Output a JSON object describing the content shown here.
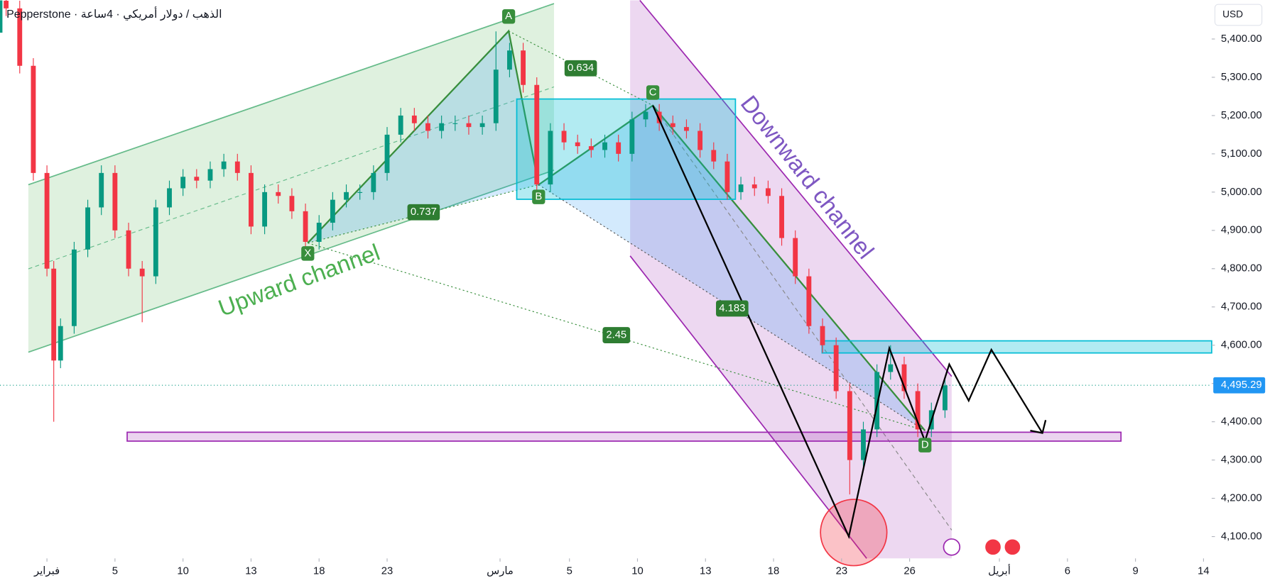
{
  "chart_data": {
    "type": "candlestick",
    "title": "Pepperstone · الذهب / دولار أمريكي · 4ساعة",
    "currency": "USD",
    "x": [
      -3,
      -2,
      -1,
      0,
      0.5,
      1,
      2,
      3,
      4,
      5,
      6,
      7,
      8,
      9,
      10,
      11,
      12,
      13,
      14,
      15,
      16,
      17,
      18,
      19,
      20,
      21,
      22,
      23,
      24,
      25,
      26,
      27,
      28,
      29,
      30,
      31,
      32,
      33,
      34,
      35,
      36,
      37,
      38,
      39,
      40,
      41,
      42,
      43,
      44,
      45,
      46,
      47,
      48,
      49,
      50,
      51,
      52,
      53,
      54,
      55,
      56,
      57,
      58,
      59,
      60,
      61,
      62,
      63,
      64,
      65,
      66
    ],
    "open": [
      5500,
      5480,
      5330,
      5050,
      4800,
      4560,
      4650,
      4850,
      4960,
      5050,
      4900,
      4800,
      4780,
      4960,
      5010,
      5040,
      5030,
      5060,
      5080,
      5050,
      4910,
      5000,
      4990,
      4950,
      4870,
      4920,
      4980,
      5000,
      5000,
      5050,
      5150,
      5200,
      5180,
      5160,
      5180,
      5180,
      5170,
      5180,
      5320,
      5370,
      5280,
      5020,
      5160,
      5130,
      5120,
      5110,
      5130,
      5100,
      5190,
      5210,
      5180,
      5170,
      5160,
      5110,
      5080,
      5000,
      5020,
      5010,
      4990,
      4880,
      4780,
      4650,
      4600,
      4480,
      4300,
      4380,
      4530,
      4550,
      4480,
      4380,
      4430
    ],
    "high": [
      5520,
      5500,
      5350,
      5070,
      4820,
      4670,
      4870,
      4980,
      5070,
      5070,
      4920,
      4820,
      4980,
      5030,
      5060,
      5060,
      5080,
      5100,
      5100,
      5070,
      5020,
      5020,
      5010,
      4970,
      4940,
      5000,
      5020,
      5020,
      5070,
      5170,
      5220,
      5220,
      5200,
      5200,
      5200,
      5200,
      5200,
      5420,
      5390,
      5390,
      5300,
      5180,
      5180,
      5150,
      5140,
      5150,
      5150,
      5210,
      5230,
      5230,
      5200,
      5190,
      5180,
      5130,
      5100,
      5040,
      5040,
      5030,
      5010,
      4900,
      4800,
      4670,
      4620,
      4500,
      4400,
      4550,
      4600,
      4570,
      4500,
      4450,
      4515
    ],
    "low": [
      5460,
      5310,
      5030,
      4780,
      4400,
      4540,
      4630,
      4830,
      4940,
      4880,
      4780,
      4660,
      4760,
      4940,
      4990,
      5010,
      5010,
      5040,
      5030,
      4890,
      4890,
      4970,
      4930,
      4850,
      4850,
      4900,
      4960,
      4980,
      4980,
      5030,
      5130,
      5160,
      5140,
      5140,
      5160,
      5150,
      5150,
      5160,
      5300,
      5260,
      5000,
      5000,
      5110,
      5100,
      5090,
      5090,
      5080,
      5080,
      5170,
      5160,
      5150,
      5140,
      5090,
      5060,
      4980,
      4980,
      4990,
      4970,
      4860,
      4760,
      4630,
      4580,
      4460,
      4210,
      4280,
      4360,
      4510,
      4460,
      4360,
      4360,
      4410
    ],
    "close": [
      5480,
      5330,
      5050,
      4800,
      4560,
      4650,
      4850,
      4960,
      5050,
      4900,
      4800,
      4780,
      4960,
      5010,
      5040,
      5030,
      5060,
      5080,
      5050,
      4910,
      5000,
      4990,
      4950,
      4870,
      4920,
      4980,
      5000,
      5000,
      5050,
      5150,
      5200,
      5180,
      5160,
      5180,
      5180,
      5170,
      5180,
      5320,
      5370,
      5280,
      5020,
      5160,
      5130,
      5120,
      5110,
      5130,
      5100,
      5190,
      5210,
      5180,
      5170,
      5160,
      5110,
      5080,
      5000,
      5020,
      5010,
      4990,
      4880,
      4780,
      4650,
      4600,
      4480,
      4300,
      4380,
      4530,
      4550,
      4480,
      4380,
      4430,
      4495
    ],
    "up_color": "#089981",
    "down_color": "#f23645",
    "xlim": [
      -3.45,
      85.6
    ],
    "ylim": [
      4043,
      5501
    ],
    "xticks": [
      {
        "value": 0,
        "label": "فبراير"
      },
      {
        "value": 5,
        "label": "5"
      },
      {
        "value": 10,
        "label": "10"
      },
      {
        "value": 15,
        "label": "13"
      },
      {
        "value": 20,
        "label": "18"
      },
      {
        "value": 25,
        "label": "23"
      },
      {
        "value": 33.3,
        "label": "مارس"
      },
      {
        "value": 38.4,
        "label": "5"
      },
      {
        "value": 43.4,
        "label": "10"
      },
      {
        "value": 48.4,
        "label": "13"
      },
      {
        "value": 53.4,
        "label": "18"
      },
      {
        "value": 58.4,
        "label": "23"
      },
      {
        "value": 63.4,
        "label": "26"
      },
      {
        "value": 70,
        "label": "أبريل"
      },
      {
        "value": 75,
        "label": "6"
      },
      {
        "value": 80,
        "label": "9"
      },
      {
        "value": 85,
        "label": "14"
      }
    ],
    "yticks": [
      {
        "value": 4100,
        "label": "4,100.00"
      },
      {
        "value": 4200,
        "label": "4,200.00"
      },
      {
        "value": 4300,
        "label": "4,300.00"
      },
      {
        "value": 4400,
        "label": "4,400.00"
      },
      {
        "value": 4500,
        "label": "4,500.00"
      },
      {
        "value": 4600,
        "label": "4,600.00"
      },
      {
        "value": 4700,
        "label": "4,700.00"
      },
      {
        "value": 4800,
        "label": "4,800.00"
      },
      {
        "value": 4900,
        "label": "4,900.00"
      },
      {
        "value": 5000,
        "label": "5,000.00"
      },
      {
        "value": 5100,
        "label": "5,100.00"
      },
      {
        "value": 5200,
        "label": "5,200.00"
      },
      {
        "value": 5300,
        "label": "5,300.00"
      },
      {
        "value": 5400,
        "label": "5,400.00"
      }
    ],
    "price_line": {
      "value": 4495.29,
      "label": "4,495.29"
    },
    "annotations": {
      "points": [
        "X",
        "A",
        "B",
        "C",
        "D"
      ],
      "ratios": [
        "0.634",
        "0.737",
        "2.45",
        "4.183"
      ],
      "channels": [
        "Upward channel",
        "Downward channel"
      ]
    }
  }
}
